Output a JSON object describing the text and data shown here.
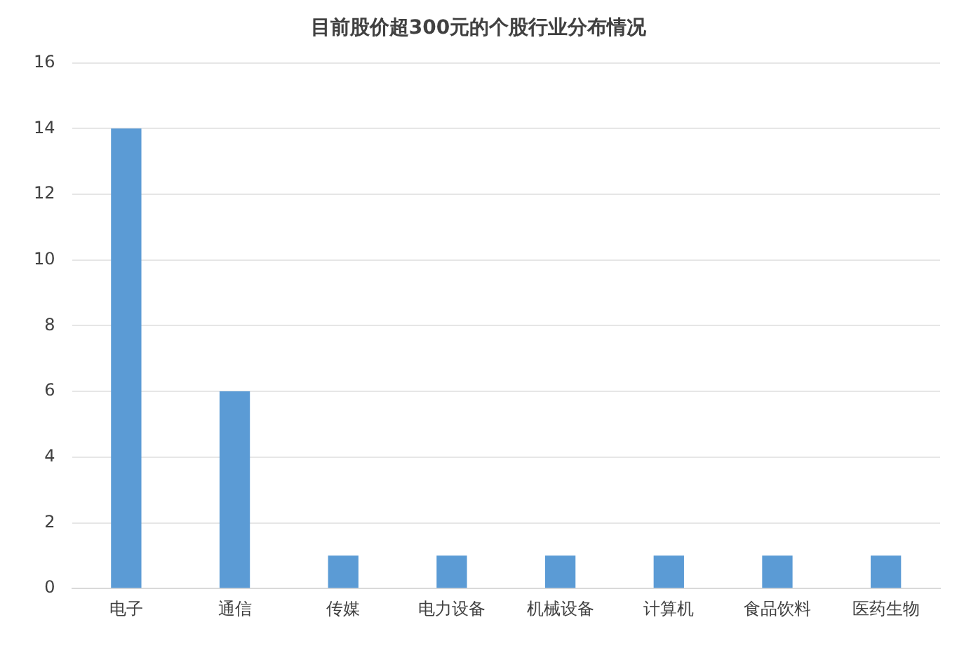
{
  "chart_data": {
    "type": "bar",
    "title": "目前股价超300元的个股行业分布情况",
    "categories": [
      "电子",
      "通信",
      "传媒",
      "电力设备",
      "机械设备",
      "计算机",
      "食品饮料",
      "医药生物"
    ],
    "values": [
      14,
      6,
      1,
      1,
      1,
      1,
      1,
      1
    ],
    "color": "#5b9bd5",
    "ylim": [
      0,
      16
    ],
    "yticks": [
      0,
      2,
      4,
      6,
      8,
      10,
      12,
      14,
      16
    ],
    "grid": "y",
    "legend": false
  }
}
